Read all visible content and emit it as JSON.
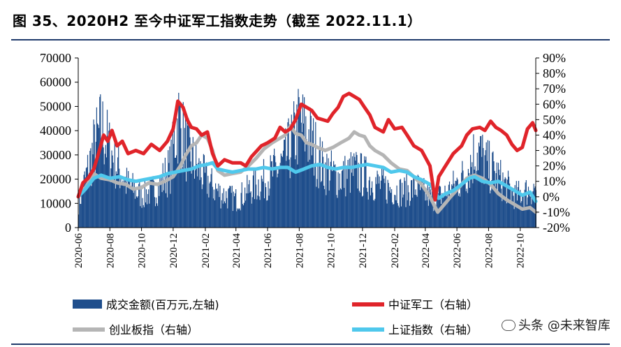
{
  "header": {
    "title": "图 35、2020H2 至今中证军工指数走势（截至 2022.11.1）"
  },
  "watermark": {
    "text": "头条 @未来智库",
    "icon": "wechat-logo-icon"
  },
  "chart_data": {
    "type": "bar+line",
    "title": "",
    "x_tick_labels": [
      "2020-06",
      "2020-08",
      "2020-10",
      "2020-12",
      "2021-02",
      "2021-04",
      "2021-06",
      "2021-08",
      "2021-10",
      "2021-12",
      "2022-02",
      "2022-04",
      "2022-06",
      "2022-08",
      "2022-10"
    ],
    "x_range": [
      "2020-06-01",
      "2022-10-31"
    ],
    "left_axis": {
      "min": 0,
      "max": 70000,
      "ticks": [
        0,
        10000,
        20000,
        30000,
        40000,
        50000,
        60000,
        70000
      ]
    },
    "right_axis": {
      "min": -20,
      "max": 90,
      "unit": "%",
      "ticks": [
        -20,
        -10,
        0,
        10,
        20,
        30,
        40,
        50,
        60,
        70,
        80,
        90
      ],
      "tick_labels": [
        "-20%",
        "-10%",
        "0%",
        "10%",
        "20%",
        "30%",
        "40%",
        "50%",
        "60%",
        "70%",
        "80%",
        "90%"
      ]
    },
    "grid": false,
    "legend_position": "bottom",
    "bars": {
      "name": "成交金额(百万元,左轴)",
      "color": "#1f4e8c",
      "points": [
        [
          "2020-06-01",
          12000
        ],
        [
          "2020-07-01",
          40000
        ],
        [
          "2020-07-15",
          50000
        ],
        [
          "2020-08-01",
          38000
        ],
        [
          "2020-09-01",
          22000
        ],
        [
          "2020-10-01",
          16000
        ],
        [
          "2020-11-01",
          20000
        ],
        [
          "2020-11-25",
          30000
        ],
        [
          "2020-12-10",
          55000
        ],
        [
          "2020-12-25",
          40000
        ],
        [
          "2021-01-15",
          30000
        ],
        [
          "2021-02-01",
          24000
        ],
        [
          "2021-03-01",
          17000
        ],
        [
          "2021-04-01",
          14000
        ],
        [
          "2021-05-01",
          20000
        ],
        [
          "2021-06-01",
          25000
        ],
        [
          "2021-07-01",
          32000
        ],
        [
          "2021-08-01",
          52000
        ],
        [
          "2021-08-20",
          45000
        ],
        [
          "2021-09-15",
          30000
        ],
        [
          "2021-10-15",
          25000
        ],
        [
          "2021-11-15",
          28000
        ],
        [
          "2021-12-15",
          24000
        ],
        [
          "2022-01-15",
          20000
        ],
        [
          "2022-02-15",
          18000
        ],
        [
          "2022-03-15",
          20000
        ],
        [
          "2022-04-15",
          14000
        ],
        [
          "2022-05-15",
          18000
        ],
        [
          "2022-06-15",
          26000
        ],
        [
          "2022-07-10",
          40000
        ],
        [
          "2022-07-25",
          32000
        ],
        [
          "2022-08-20",
          25000
        ],
        [
          "2022-09-20",
          16000
        ],
        [
          "2022-10-31",
          20000
        ]
      ]
    },
    "series": [
      {
        "name": "中证军工（右轴）",
        "color": "#e0242a",
        "width": 5,
        "points": [
          [
            "2020-06-01",
            0
          ],
          [
            "2020-06-10",
            9
          ],
          [
            "2020-06-20",
            12
          ],
          [
            "2020-07-01",
            18
          ],
          [
            "2020-07-10",
            28
          ],
          [
            "2020-07-20",
            40
          ],
          [
            "2020-07-28",
            36
          ],
          [
            "2020-08-05",
            43
          ],
          [
            "2020-08-15",
            33
          ],
          [
            "2020-08-25",
            36
          ],
          [
            "2020-09-05",
            28
          ],
          [
            "2020-09-20",
            30
          ],
          [
            "2020-10-05",
            28
          ],
          [
            "2020-10-20",
            34
          ],
          [
            "2020-11-05",
            30
          ],
          [
            "2020-11-20",
            36
          ],
          [
            "2020-12-01",
            44
          ],
          [
            "2020-12-10",
            62
          ],
          [
            "2020-12-20",
            58
          ],
          [
            "2020-12-28",
            50
          ],
          [
            "2021-01-05",
            45
          ],
          [
            "2021-01-15",
            44
          ],
          [
            "2021-01-25",
            40
          ],
          [
            "2021-02-05",
            42
          ],
          [
            "2021-02-15",
            28
          ],
          [
            "2021-02-25",
            20
          ],
          [
            "2021-03-10",
            24
          ],
          [
            "2021-03-25",
            22
          ],
          [
            "2021-04-10",
            22
          ],
          [
            "2021-04-20",
            20
          ],
          [
            "2021-05-01",
            26
          ],
          [
            "2021-05-20",
            33
          ],
          [
            "2021-06-01",
            35
          ],
          [
            "2021-06-15",
            38
          ],
          [
            "2021-06-25",
            45
          ],
          [
            "2021-07-05",
            42
          ],
          [
            "2021-07-15",
            44
          ],
          [
            "2021-07-25",
            50
          ],
          [
            "2021-08-05",
            60
          ],
          [
            "2021-08-15",
            58
          ],
          [
            "2021-08-25",
            56
          ],
          [
            "2021-09-05",
            51
          ],
          [
            "2021-09-15",
            50
          ],
          [
            "2021-09-25",
            49
          ],
          [
            "2021-10-05",
            54
          ],
          [
            "2021-10-15",
            58
          ],
          [
            "2021-10-25",
            65
          ],
          [
            "2021-11-05",
            67
          ],
          [
            "2021-11-15",
            65
          ],
          [
            "2021-11-25",
            63
          ],
          [
            "2021-12-05",
            58
          ],
          [
            "2021-12-15",
            53
          ],
          [
            "2021-12-25",
            45
          ],
          [
            "2022-01-10",
            42
          ],
          [
            "2022-01-20",
            50
          ],
          [
            "2022-02-01",
            44
          ],
          [
            "2022-02-15",
            45
          ],
          [
            "2022-02-25",
            40
          ],
          [
            "2022-03-10",
            33
          ],
          [
            "2022-03-25",
            30
          ],
          [
            "2022-04-10",
            20
          ],
          [
            "2022-04-20",
            -2
          ],
          [
            "2022-04-27",
            13
          ],
          [
            "2022-05-10",
            20
          ],
          [
            "2022-05-25",
            28
          ],
          [
            "2022-06-10",
            33
          ],
          [
            "2022-06-20",
            40
          ],
          [
            "2022-07-01",
            44
          ],
          [
            "2022-07-15",
            45
          ],
          [
            "2022-07-25",
            43
          ],
          [
            "2022-08-05",
            49
          ],
          [
            "2022-08-15",
            45
          ],
          [
            "2022-08-25",
            43
          ],
          [
            "2022-09-05",
            40
          ],
          [
            "2022-09-15",
            34
          ],
          [
            "2022-09-25",
            30
          ],
          [
            "2022-10-05",
            32
          ],
          [
            "2022-10-15",
            44
          ],
          [
            "2022-10-25",
            48
          ],
          [
            "2022-10-31",
            43
          ]
        ]
      },
      {
        "name": "创业板指（右轴）",
        "color": "#b5b5b5",
        "width": 5,
        "points": [
          [
            "2020-06-01",
            0
          ],
          [
            "2020-06-15",
            6
          ],
          [
            "2020-07-01",
            15
          ],
          [
            "2020-07-15",
            12
          ],
          [
            "2020-08-01",
            11
          ],
          [
            "2020-08-15",
            9
          ],
          [
            "2020-09-01",
            8
          ],
          [
            "2020-09-15",
            5
          ],
          [
            "2020-10-01",
            6
          ],
          [
            "2020-10-15",
            9
          ],
          [
            "2020-11-01",
            8
          ],
          [
            "2020-11-15",
            10
          ],
          [
            "2020-12-01",
            13
          ],
          [
            "2020-12-15",
            20
          ],
          [
            "2020-12-25",
            27
          ],
          [
            "2021-01-05",
            33
          ],
          [
            "2021-01-15",
            35
          ],
          [
            "2021-01-25",
            40
          ],
          [
            "2021-02-05",
            38
          ],
          [
            "2021-02-15",
            30
          ],
          [
            "2021-02-25",
            17
          ],
          [
            "2021-03-10",
            14
          ],
          [
            "2021-03-25",
            15
          ],
          [
            "2021-04-10",
            16
          ],
          [
            "2021-04-25",
            20
          ],
          [
            "2021-05-10",
            25
          ],
          [
            "2021-05-25",
            31
          ],
          [
            "2021-06-10",
            35
          ],
          [
            "2021-06-25",
            38
          ],
          [
            "2021-07-05",
            40
          ],
          [
            "2021-07-15",
            46
          ],
          [
            "2021-07-25",
            41
          ],
          [
            "2021-08-05",
            40
          ],
          [
            "2021-08-15",
            35
          ],
          [
            "2021-08-25",
            34
          ],
          [
            "2021-09-05",
            32
          ],
          [
            "2021-09-20",
            30
          ],
          [
            "2021-10-05",
            32
          ],
          [
            "2021-10-20",
            35
          ],
          [
            "2021-11-05",
            38
          ],
          [
            "2021-11-15",
            42
          ],
          [
            "2021-11-25",
            40
          ],
          [
            "2021-12-05",
            39
          ],
          [
            "2021-12-15",
            33
          ],
          [
            "2021-12-25",
            30
          ],
          [
            "2022-01-10",
            27
          ],
          [
            "2022-01-25",
            22
          ],
          [
            "2022-02-10",
            18
          ],
          [
            "2022-02-25",
            17
          ],
          [
            "2022-03-10",
            13
          ],
          [
            "2022-03-25",
            8
          ],
          [
            "2022-04-10",
            0
          ],
          [
            "2022-04-25",
            -10
          ],
          [
            "2022-05-05",
            -6
          ],
          [
            "2022-05-20",
            0
          ],
          [
            "2022-06-05",
            6
          ],
          [
            "2022-06-20",
            12
          ],
          [
            "2022-07-05",
            14
          ],
          [
            "2022-07-20",
            12
          ],
          [
            "2022-08-05",
            8
          ],
          [
            "2022-08-20",
            2
          ],
          [
            "2022-09-05",
            -2
          ],
          [
            "2022-09-20",
            -5
          ],
          [
            "2022-10-05",
            -8
          ],
          [
            "2022-10-20",
            -7
          ],
          [
            "2022-10-31",
            -10
          ]
        ]
      },
      {
        "name": "上证指数（右轴）",
        "color": "#4fc8ec",
        "width": 5,
        "points": [
          [
            "2020-06-01",
            0
          ],
          [
            "2020-06-15",
            5
          ],
          [
            "2020-07-01",
            12
          ],
          [
            "2020-07-15",
            14
          ],
          [
            "2020-08-01",
            12
          ],
          [
            "2020-08-20",
            13
          ],
          [
            "2020-09-05",
            11
          ],
          [
            "2020-09-20",
            10
          ],
          [
            "2020-10-05",
            11
          ],
          [
            "2020-10-20",
            12
          ],
          [
            "2020-11-05",
            13
          ],
          [
            "2020-11-20",
            15
          ],
          [
            "2020-12-05",
            16
          ],
          [
            "2020-12-20",
            17
          ],
          [
            "2021-01-05",
            18
          ],
          [
            "2021-01-20",
            20
          ],
          [
            "2021-02-05",
            21
          ],
          [
            "2021-02-15",
            22
          ],
          [
            "2021-02-25",
            18
          ],
          [
            "2021-03-10",
            17
          ],
          [
            "2021-03-25",
            16
          ],
          [
            "2021-04-10",
            17
          ],
          [
            "2021-04-25",
            18
          ],
          [
            "2021-05-10",
            18
          ],
          [
            "2021-05-25",
            19
          ],
          [
            "2021-06-10",
            18
          ],
          [
            "2021-06-25",
            19
          ],
          [
            "2021-07-10",
            19
          ],
          [
            "2021-07-25",
            16
          ],
          [
            "2021-08-10",
            18
          ],
          [
            "2021-08-25",
            20
          ],
          [
            "2021-09-10",
            21
          ],
          [
            "2021-09-25",
            19
          ],
          [
            "2021-10-10",
            18
          ],
          [
            "2021-10-25",
            19
          ],
          [
            "2021-11-10",
            19
          ],
          [
            "2021-11-25",
            20
          ],
          [
            "2021-12-10",
            21
          ],
          [
            "2021-12-25",
            20
          ],
          [
            "2022-01-10",
            19
          ],
          [
            "2022-01-25",
            16
          ],
          [
            "2022-02-10",
            17
          ],
          [
            "2022-02-25",
            16
          ],
          [
            "2022-03-10",
            13
          ],
          [
            "2022-03-25",
            11
          ],
          [
            "2022-04-10",
            8
          ],
          [
            "2022-04-27",
            -1
          ],
          [
            "2022-05-10",
            2
          ],
          [
            "2022-05-25",
            4
          ],
          [
            "2022-06-10",
            8
          ],
          [
            "2022-06-25",
            12
          ],
          [
            "2022-07-05",
            13
          ],
          [
            "2022-07-20",
            10
          ],
          [
            "2022-08-05",
            9
          ],
          [
            "2022-08-20",
            10
          ],
          [
            "2022-09-05",
            7
          ],
          [
            "2022-09-20",
            4
          ],
          [
            "2022-10-05",
            1
          ],
          [
            "2022-10-20",
            3
          ],
          [
            "2022-10-31",
            -3
          ]
        ]
      }
    ]
  }
}
